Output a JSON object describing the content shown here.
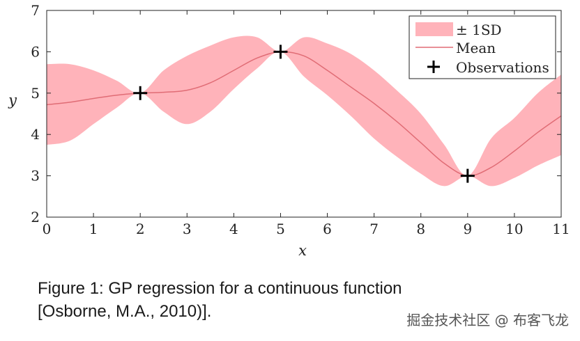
{
  "chart_data": {
    "type": "line",
    "xlabel": "x",
    "ylabel": "y",
    "xlim": [
      0,
      11
    ],
    "ylim": [
      2,
      7
    ],
    "xticks": [
      "0",
      "1",
      "2",
      "3",
      "4",
      "5",
      "6",
      "7",
      "8",
      "9",
      "10",
      "11"
    ],
    "yticks": [
      "2",
      "3",
      "4",
      "5",
      "6",
      "7"
    ],
    "grid": false,
    "legend_position": "top-right",
    "colors": {
      "band": "#ffb3ba",
      "mean": "#e06c75",
      "obs": "#000000"
    },
    "series": [
      {
        "name": "± 1SD",
        "kind": "band",
        "x": [
          0,
          0.5,
          1,
          1.5,
          2,
          2.5,
          3,
          3.5,
          4,
          4.5,
          5,
          5.5,
          6,
          6.5,
          7,
          7.5,
          8,
          8.5,
          9,
          9.5,
          10,
          10.5,
          11
        ],
        "upper": [
          5.7,
          5.7,
          5.55,
          5.3,
          5.0,
          5.55,
          5.9,
          6.15,
          6.35,
          6.35,
          6.0,
          6.35,
          6.2,
          5.95,
          5.55,
          5.05,
          4.5,
          3.75,
          3.0,
          3.9,
          4.4,
          5.0,
          5.45
        ],
        "lower": [
          3.75,
          3.85,
          4.25,
          4.65,
          5.0,
          4.55,
          4.25,
          4.55,
          5.1,
          5.6,
          6.0,
          5.4,
          4.95,
          4.45,
          3.9,
          3.45,
          3.05,
          2.75,
          3.0,
          2.75,
          2.95,
          3.25,
          3.5
        ]
      },
      {
        "name": "Mean",
        "kind": "line",
        "x": [
          0,
          0.5,
          1,
          1.5,
          2,
          2.5,
          3,
          3.5,
          4,
          4.5,
          5,
          5.5,
          6,
          6.5,
          7,
          7.5,
          8,
          8.5,
          9,
          9.5,
          10,
          10.5,
          11
        ],
        "y": [
          4.72,
          4.78,
          4.87,
          4.95,
          5.0,
          5.02,
          5.07,
          5.25,
          5.55,
          5.85,
          6.0,
          5.9,
          5.55,
          5.15,
          4.75,
          4.3,
          3.8,
          3.3,
          3.0,
          3.2,
          3.6,
          4.05,
          4.45
        ]
      },
      {
        "name": "Observations",
        "kind": "scatter",
        "x": [
          2,
          5,
          9
        ],
        "y": [
          5,
          6,
          3
        ]
      }
    ]
  },
  "caption": {
    "line1": "Figure 1: GP regression for a continuous function",
    "line2": "[Osborne, M.A., 2010)]."
  },
  "watermark": "掘金技术社区 @ 布客飞龙"
}
